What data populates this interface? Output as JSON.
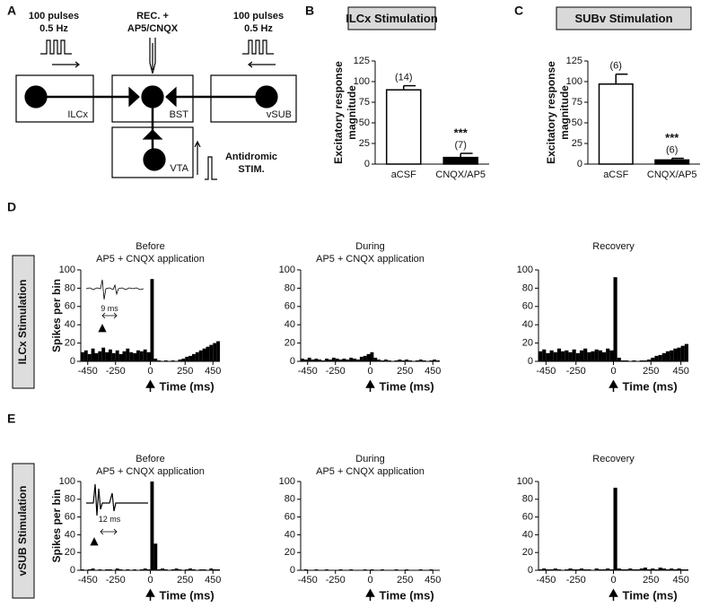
{
  "panel_labels": [
    "A",
    "B",
    "C",
    "D",
    "E"
  ],
  "diagram": {
    "left_stim": [
      "100 pulses",
      "0.5 Hz"
    ],
    "center_label": [
      "REC. +",
      "AP5/CNQX"
    ],
    "right_stim": [
      "100 pulses",
      "0.5 Hz"
    ],
    "nodes": [
      "ILCx",
      "BST",
      "vSUB",
      "VTA"
    ],
    "antidromic": [
      "Antidromic",
      "STIM."
    ]
  },
  "row_labels": [
    "ILCx Stimulation",
    "vSUB Stimulation"
  ],
  "chart_data": [
    {
      "type": "bar",
      "title": "ILCx Stimulation",
      "y_label": [
        "Excitatory response",
        "magnitude"
      ],
      "categories": [
        "aCSF",
        "CNQX/AP5"
      ],
      "values": [
        90,
        8
      ],
      "errors": [
        5,
        5
      ],
      "colors": [
        "#ffffff",
        "#000000"
      ],
      "n_labels": [
        "(14)",
        "(7)"
      ],
      "significance": [
        null,
        "***"
      ],
      "ylim": [
        0,
        125
      ],
      "yticks": [
        0,
        25,
        50,
        75,
        100,
        125
      ]
    },
    {
      "type": "bar",
      "title": "SUBv Stimulation",
      "y_label": [
        "Excitatory response",
        "magnitude"
      ],
      "categories": [
        "aCSF",
        "CNQX/AP5"
      ],
      "values": [
        97,
        5
      ],
      "errors": [
        12,
        2
      ],
      "colors": [
        "#ffffff",
        "#000000"
      ],
      "n_labels": [
        "(6)",
        "(6)"
      ],
      "significance": [
        null,
        "***"
      ],
      "ylim": [
        0,
        125
      ],
      "yticks": [
        0,
        25,
        50,
        75,
        100,
        125
      ]
    },
    {
      "type": "histogram",
      "title": "Before",
      "subtitle": "AP5 + CNQX application",
      "y_label": "Spikes per bin",
      "x_label": "Time (ms)",
      "inset_label": "9 ms",
      "color": "#000000",
      "bins": [
        -500,
        -475,
        -450,
        -425,
        -400,
        -375,
        -350,
        -325,
        -300,
        -275,
        -250,
        -225,
        -200,
        -175,
        -150,
        -125,
        -100,
        -75,
        -50,
        -25,
        0,
        25,
        50,
        75,
        100,
        125,
        150,
        175,
        200,
        225,
        250,
        275,
        300,
        325,
        350,
        375,
        400,
        425,
        450,
        475,
        500
      ],
      "counts": [
        10,
        12,
        8,
        14,
        9,
        11,
        15,
        10,
        13,
        9,
        12,
        8,
        11,
        14,
        10,
        9,
        12,
        11,
        13,
        10,
        90,
        3,
        1,
        0,
        1,
        0,
        1,
        0,
        2,
        3,
        5,
        6,
        8,
        10,
        12,
        14,
        16,
        18,
        20,
        22
      ],
      "xlim": [
        -500,
        500
      ],
      "xticks": [
        -450,
        -250,
        0,
        250,
        450
      ],
      "ylim": [
        0,
        100
      ],
      "yticks": [
        0,
        20,
        40,
        60,
        80,
        100
      ]
    },
    {
      "type": "histogram",
      "title": "During",
      "subtitle": "AP5 + CNQX application",
      "x_label": "Time (ms)",
      "color": "#000000",
      "bins": [
        -500,
        -475,
        -450,
        -425,
        -400,
        -375,
        -350,
        -325,
        -300,
        -275,
        -250,
        -225,
        -200,
        -175,
        -150,
        -125,
        -100,
        -75,
        -50,
        -25,
        0,
        25,
        50,
        75,
        100,
        125,
        150,
        175,
        200,
        225,
        250,
        275,
        300,
        325,
        350,
        375,
        400,
        425,
        450,
        475,
        500
      ],
      "counts": [
        3,
        2,
        4,
        2,
        3,
        2,
        1,
        3,
        2,
        4,
        3,
        2,
        3,
        2,
        4,
        3,
        2,
        5,
        6,
        8,
        10,
        4,
        2,
        1,
        2,
        1,
        0,
        1,
        2,
        1,
        2,
        1,
        0,
        1,
        2,
        1,
        0,
        1,
        2,
        1
      ],
      "xlim": [
        -500,
        500
      ],
      "xticks": [
        -450,
        -250,
        0,
        250,
        450
      ],
      "ylim": [
        0,
        100
      ],
      "yticks": [
        0,
        20,
        40,
        60,
        80,
        100
      ]
    },
    {
      "type": "histogram",
      "title": "Recovery",
      "x_label": "Time (ms)",
      "color": "#000000",
      "bins": [
        -500,
        -475,
        -450,
        -425,
        -400,
        -375,
        -350,
        -325,
        -300,
        -275,
        -250,
        -225,
        -200,
        -175,
        -150,
        -125,
        -100,
        -75,
        -50,
        -25,
        0,
        25,
        50,
        75,
        100,
        125,
        150,
        175,
        200,
        225,
        250,
        275,
        300,
        325,
        350,
        375,
        400,
        425,
        450,
        475,
        500
      ],
      "counts": [
        11,
        13,
        9,
        12,
        10,
        14,
        11,
        12,
        10,
        13,
        9,
        12,
        14,
        10,
        11,
        13,
        12,
        10,
        14,
        12,
        92,
        4,
        1,
        1,
        0,
        1,
        0,
        1,
        1,
        2,
        4,
        6,
        7,
        9,
        11,
        12,
        14,
        15,
        17,
        19
      ],
      "xlim": [
        -500,
        500
      ],
      "xticks": [
        -450,
        -250,
        0,
        250,
        450
      ],
      "ylim": [
        0,
        100
      ],
      "yticks": [
        0,
        20,
        40,
        60,
        80,
        100
      ]
    },
    {
      "type": "histogram",
      "title": "Before",
      "subtitle": "AP5 + CNQX application",
      "y_label": "Spikes per bin",
      "x_label": "Time (ms)",
      "inset_label": "12 ms",
      "color": "#000000",
      "bins": [
        -500,
        -475,
        -450,
        -425,
        -400,
        -375,
        -350,
        -325,
        -300,
        -275,
        -250,
        -225,
        -200,
        -175,
        -150,
        -125,
        -100,
        -75,
        -50,
        -25,
        0,
        25,
        50,
        75,
        100,
        125,
        150,
        175,
        200,
        225,
        250,
        275,
        300,
        325,
        350,
        375,
        400,
        425,
        450,
        475,
        500
      ],
      "counts": [
        1,
        0,
        1,
        2,
        0,
        1,
        0,
        1,
        1,
        0,
        2,
        1,
        0,
        1,
        0,
        1,
        0,
        1,
        2,
        1,
        100,
        30,
        1,
        2,
        1,
        0,
        1,
        2,
        1,
        0,
        1,
        2,
        1,
        0,
        1,
        1,
        0,
        2,
        1,
        1
      ],
      "xlim": [
        -500,
        500
      ],
      "xticks": [
        -450,
        -250,
        0,
        250,
        450
      ],
      "ylim": [
        0,
        100
      ],
      "yticks": [
        0,
        20,
        40,
        60,
        80,
        100
      ]
    },
    {
      "type": "histogram",
      "title": "During",
      "subtitle": "AP5 + CNQX application",
      "x_label": "Time (ms)",
      "color": "#000000",
      "bins": [
        -500,
        -475,
        -450,
        -425,
        -400,
        -375,
        -350,
        -325,
        -300,
        -275,
        -250,
        -225,
        -200,
        -175,
        -150,
        -125,
        -100,
        -75,
        -50,
        -25,
        0,
        25,
        50,
        75,
        100,
        125,
        150,
        175,
        200,
        225,
        250,
        275,
        300,
        325,
        350,
        375,
        400,
        425,
        450,
        475,
        500
      ],
      "counts": [
        0,
        1,
        0,
        0,
        1,
        0,
        0,
        1,
        0,
        0,
        0,
        1,
        0,
        0,
        1,
        0,
        0,
        0,
        1,
        0,
        1,
        0,
        0,
        1,
        0,
        0,
        0,
        1,
        0,
        0,
        1,
        0,
        0,
        0,
        1,
        0,
        0,
        1,
        0,
        0
      ],
      "xlim": [
        -500,
        500
      ],
      "xticks": [
        -450,
        -250,
        0,
        250,
        450
      ],
      "ylim": [
        0,
        100
      ],
      "yticks": [
        0,
        20,
        40,
        60,
        80,
        100
      ]
    },
    {
      "type": "histogram",
      "title": "Recovery",
      "x_label": "Time (ms)",
      "color": "#000000",
      "bins": [
        -500,
        -475,
        -450,
        -425,
        -400,
        -375,
        -350,
        -325,
        -300,
        -275,
        -250,
        -225,
        -200,
        -175,
        -150,
        -125,
        -100,
        -75,
        -50,
        -25,
        0,
        25,
        50,
        75,
        100,
        125,
        150,
        175,
        200,
        225,
        250,
        275,
        300,
        325,
        350,
        375,
        400,
        425,
        450,
        475,
        500
      ],
      "counts": [
        1,
        2,
        1,
        1,
        2,
        1,
        0,
        1,
        2,
        1,
        1,
        2,
        1,
        1,
        0,
        2,
        1,
        1,
        2,
        1,
        93,
        2,
        1,
        1,
        2,
        1,
        1,
        2,
        3,
        1,
        2,
        1,
        3,
        2,
        1,
        2,
        1,
        2,
        1,
        1
      ],
      "xlim": [
        -500,
        500
      ],
      "xticks": [
        -450,
        -250,
        0,
        250,
        450
      ],
      "ylim": [
        0,
        100
      ],
      "yticks": [
        0,
        20,
        40,
        60,
        80,
        100
      ]
    }
  ]
}
